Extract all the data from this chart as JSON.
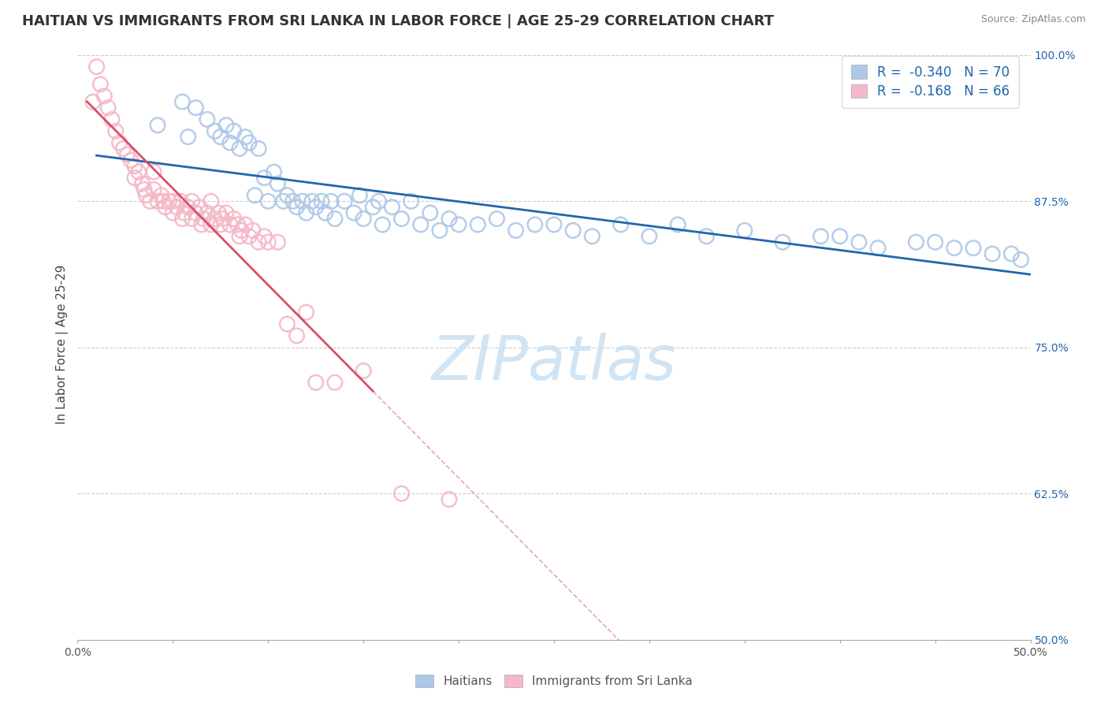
{
  "title": "HAITIAN VS IMMIGRANTS FROM SRI LANKA IN LABOR FORCE | AGE 25-29 CORRELATION CHART",
  "source": "Source: ZipAtlas.com",
  "ylabel": "In Labor Force | Age 25-29",
  "xlim": [
    0.0,
    0.5
  ],
  "ylim": [
    0.5,
    1.005
  ],
  "yticks_right": [
    0.5,
    0.625,
    0.75,
    0.875,
    1.0
  ],
  "yticklabels_right": [
    "50.0%",
    "62.5%",
    "75.0%",
    "87.5%",
    "100.0%"
  ],
  "legend_R1": "-0.340",
  "legend_N1": "70",
  "legend_R2": "-0.168",
  "legend_N2": "66",
  "legend_label1": "Haitians",
  "legend_label2": "Immigrants from Sri Lanka",
  "blue_face": "#aec8e8",
  "blue_edge": "#5a9fd4",
  "pink_face": "#f4b8c8",
  "pink_edge": "#e080a0",
  "blue_line_color": "#2166ac",
  "pink_line_color": "#d94f6a",
  "pink_dash_color": "#f0a0b8",
  "watermark": "ZIPatlas",
  "watermark_color": "#d0e4f4",
  "title_fontsize": 13,
  "axis_label_fontsize": 11,
  "tick_fontsize": 10,
  "blue_x": [
    0.042,
    0.055,
    0.058,
    0.062,
    0.068,
    0.072,
    0.075,
    0.078,
    0.08,
    0.082,
    0.085,
    0.088,
    0.09,
    0.093,
    0.095,
    0.098,
    0.1,
    0.103,
    0.105,
    0.108,
    0.11,
    0.113,
    0.115,
    0.118,
    0.12,
    0.123,
    0.125,
    0.128,
    0.13,
    0.133,
    0.135,
    0.14,
    0.145,
    0.148,
    0.15,
    0.155,
    0.158,
    0.16,
    0.165,
    0.17,
    0.175,
    0.18,
    0.185,
    0.19,
    0.195,
    0.2,
    0.21,
    0.22,
    0.23,
    0.24,
    0.25,
    0.26,
    0.27,
    0.285,
    0.3,
    0.315,
    0.33,
    0.35,
    0.37,
    0.39,
    0.4,
    0.41,
    0.42,
    0.44,
    0.45,
    0.46,
    0.47,
    0.48,
    0.49,
    0.495
  ],
  "blue_y": [
    0.94,
    0.96,
    0.93,
    0.955,
    0.945,
    0.935,
    0.93,
    0.94,
    0.925,
    0.935,
    0.92,
    0.93,
    0.925,
    0.88,
    0.92,
    0.895,
    0.875,
    0.9,
    0.89,
    0.875,
    0.88,
    0.875,
    0.87,
    0.875,
    0.865,
    0.875,
    0.87,
    0.875,
    0.865,
    0.875,
    0.86,
    0.875,
    0.865,
    0.88,
    0.86,
    0.87,
    0.875,
    0.855,
    0.87,
    0.86,
    0.875,
    0.855,
    0.865,
    0.85,
    0.86,
    0.855,
    0.855,
    0.86,
    0.85,
    0.855,
    0.855,
    0.85,
    0.845,
    0.855,
    0.845,
    0.855,
    0.845,
    0.85,
    0.84,
    0.845,
    0.845,
    0.84,
    0.835,
    0.84,
    0.84,
    0.835,
    0.835,
    0.83,
    0.83,
    0.825
  ],
  "pink_x": [
    0.008,
    0.01,
    0.012,
    0.014,
    0.016,
    0.018,
    0.02,
    0.022,
    0.024,
    0.026,
    0.028,
    0.03,
    0.03,
    0.032,
    0.034,
    0.035,
    0.036,
    0.038,
    0.04,
    0.04,
    0.042,
    0.044,
    0.045,
    0.046,
    0.048,
    0.05,
    0.05,
    0.052,
    0.054,
    0.055,
    0.056,
    0.058,
    0.06,
    0.06,
    0.062,
    0.064,
    0.065,
    0.066,
    0.068,
    0.07,
    0.07,
    0.072,
    0.074,
    0.075,
    0.076,
    0.078,
    0.08,
    0.082,
    0.084,
    0.085,
    0.086,
    0.088,
    0.09,
    0.092,
    0.095,
    0.098,
    0.1,
    0.105,
    0.11,
    0.115,
    0.12,
    0.125,
    0.135,
    0.15,
    0.17,
    0.195
  ],
  "pink_y": [
    0.96,
    0.99,
    0.975,
    0.965,
    0.955,
    0.945,
    0.935,
    0.925,
    0.92,
    0.915,
    0.91,
    0.905,
    0.895,
    0.9,
    0.89,
    0.885,
    0.88,
    0.875,
    0.9,
    0.885,
    0.875,
    0.88,
    0.875,
    0.87,
    0.875,
    0.875,
    0.865,
    0.87,
    0.875,
    0.86,
    0.865,
    0.87,
    0.875,
    0.86,
    0.865,
    0.87,
    0.855,
    0.86,
    0.865,
    0.875,
    0.855,
    0.86,
    0.865,
    0.855,
    0.86,
    0.865,
    0.855,
    0.86,
    0.855,
    0.845,
    0.85,
    0.855,
    0.845,
    0.85,
    0.84,
    0.845,
    0.84,
    0.84,
    0.77,
    0.76,
    0.78,
    0.72,
    0.72,
    0.73,
    0.625,
    0.62
  ]
}
